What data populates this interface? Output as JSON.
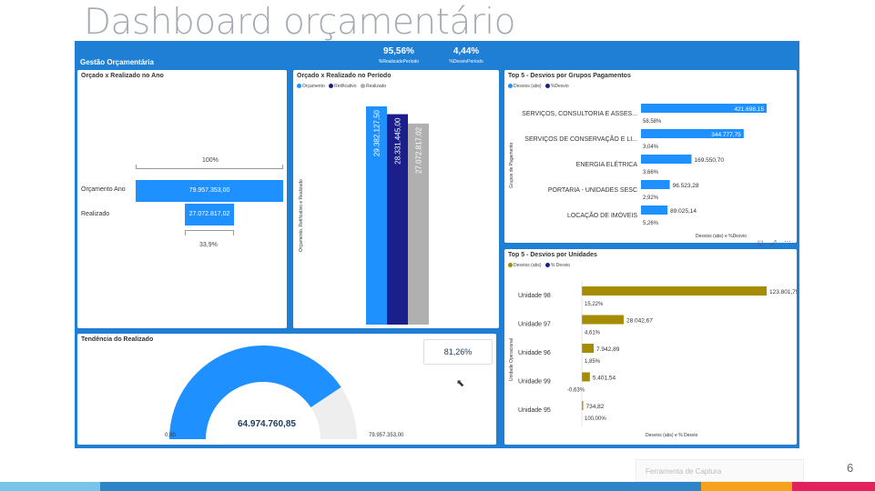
{
  "slide": {
    "title": "Dashboard orçamentário",
    "page_number": "6",
    "capture_tool": "Ferramenta de Captura"
  },
  "header": {
    "title": "Gestão Orçamentária"
  },
  "kpis": [
    {
      "value": "95,56%",
      "label": "%RealizadoPeríodo"
    },
    {
      "value": "4,44%",
      "label": "%DesvioPeríodo"
    }
  ],
  "colors": {
    "blue": "#1e90ff",
    "navy": "#1a1f8c",
    "gray": "#b0b0b0",
    "gold": "#a68c00",
    "dark_blue": "#2f8be6"
  },
  "panel_ano": {
    "title": "Orçado x Realizado no Ano",
    "pct_top": "100%",
    "pct_bottom": "33,9%",
    "rows": [
      {
        "label": "Orçamento Ano",
        "value": "79.957.353,00",
        "fraction": 1.0
      },
      {
        "label": "Realizado",
        "value": "27.072.817,02",
        "fraction": 0.339
      }
    ]
  },
  "panel_periodo": {
    "title": "Orçado x Realizado no Período",
    "legend": [
      "Orçamento",
      "Retificativo",
      "Realizado"
    ],
    "y_title": "Orçamento, Retificativo e Realizado",
    "chart_data": {
      "type": "bar",
      "categories": [
        ""
      ],
      "series": [
        {
          "name": "Orçamento",
          "values": [
            29382127.5
          ],
          "label": "29.382.127,50"
        },
        {
          "name": "Retificativo",
          "values": [
            28331445.0
          ],
          "label": "28.331.445,00"
        },
        {
          "name": "Realizado",
          "values": [
            27072817.02
          ],
          "label": "27.072.817,02"
        }
      ],
      "ylim": [
        0,
        29382127.5
      ]
    }
  },
  "panel_grupos": {
    "title": "Top 5 - Desvios por Grupos Pagamentos",
    "legend": [
      "Desvios (abs)",
      "%Desvio"
    ],
    "y_title": "Grupos de Pagamento",
    "x_title": "Desvios (abs) e %Desvio",
    "chart_data": {
      "type": "bar",
      "categories": [
        "SERVIÇOS, CONSULTORIA E ASSES...",
        "SERVIÇOS DE CONSERVAÇÃO E LI...",
        "ENERGIA ELÉTRICA",
        "PORTARIA - UNIDADES SESC",
        "LOCAÇÃO DE IMÓVEIS"
      ],
      "series": [
        {
          "name": "Desvios (abs)",
          "values": [
            421698.15,
            344777.75,
            169550.7,
            96523.28,
            89025.14
          ],
          "labels": [
            "421.698,15",
            "344.777,75",
            "169.550,70",
            "96.523,28",
            "89.025,14"
          ]
        },
        {
          "name": "%Desvio",
          "values": [
            58.58,
            3.04,
            3.66,
            2.92,
            5.26
          ],
          "labels": [
            "58,58%",
            "3,04%",
            "3,66%",
            "2,92%",
            "5,26%"
          ]
        }
      ],
      "xlim": [
        0,
        421698.15
      ]
    }
  },
  "panel_tendencia": {
    "title": "Tendência do Realizado",
    "card_value": "81,26%",
    "chart_data": {
      "type": "gauge",
      "value": 64974760.85,
      "value_label": "64.974.760,85",
      "min": 0,
      "min_label": "0,00",
      "max": 79957353.0,
      "max_label": "79.957.353,00"
    }
  },
  "panel_unidades": {
    "title": "Top 5 - Desvios por Unidades",
    "legend": [
      "Desvios (abs)",
      "% Desvio"
    ],
    "y_title": "Unidade Operacional",
    "x_title": "Desvios (abs) e % Desvio",
    "chart_data": {
      "type": "bar",
      "categories": [
        "Unidade 98",
        "Unidade 97",
        "Unidade 96",
        "Unidade 99",
        "Unidade 95"
      ],
      "series": [
        {
          "name": "Desvios (abs)",
          "values": [
            123801.75,
            28042.67,
            7942.89,
            5401.54,
            734.82
          ],
          "labels": [
            "123.801,75",
            "28.042,67",
            "7.942,89",
            "5.401,54",
            "734,82"
          ]
        },
        {
          "name": "% Desvio",
          "values": [
            15.22,
            4.61,
            1.85,
            -0.63,
            100.0
          ],
          "labels": [
            "15,22%",
            "4,61%",
            "1,85%",
            "-0,63%",
            "100,00%"
          ]
        }
      ],
      "xlim": [
        0,
        123801.75
      ]
    }
  }
}
